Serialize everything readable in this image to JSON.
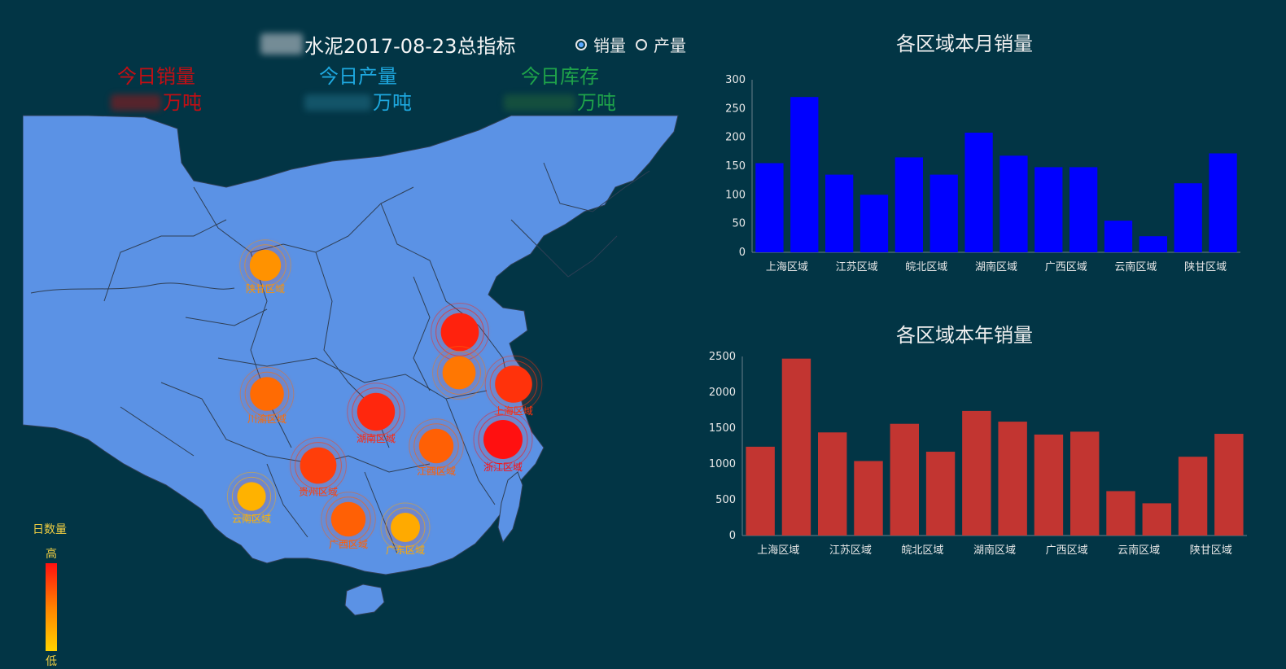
{
  "header": {
    "title": "水泥2017-08-23总指标",
    "mode_options": [
      {
        "label": "销量",
        "checked": true
      },
      {
        "label": "产量",
        "checked": false
      }
    ]
  },
  "stats": [
    {
      "label": "今日销量",
      "unit": "万吨",
      "color": "#c20f14"
    },
    {
      "label": "今日产量",
      "unit": "万吨",
      "color": "#1ea8df"
    },
    {
      "label": "今日库存",
      "unit": "万吨",
      "color": "#1fa34a"
    }
  ],
  "map": {
    "fill_color": "#5b92e5",
    "regions": [
      {
        "name": "陕甘区域",
        "level": 0.4
      },
      {
        "name": "",
        "level": 0.92
      },
      {
        "name": "",
        "level": 0.55
      },
      {
        "name": "上海区域",
        "level": 0.85
      },
      {
        "name": "川渝区域",
        "level": 0.6
      },
      {
        "name": "湖南区域",
        "level": 0.9
      },
      {
        "name": "江西区域",
        "level": 0.65
      },
      {
        "name": "浙江区域",
        "level": 1.0
      },
      {
        "name": "贵州区域",
        "level": 0.8
      },
      {
        "name": "云南区域",
        "level": 0.2
      },
      {
        "name": "广西区域",
        "level": 0.65
      },
      {
        "name": "广东区域",
        "level": 0.25
      }
    ]
  },
  "legend": {
    "title": "日数量",
    "high": "高",
    "low": "低"
  },
  "chart_data": [
    {
      "type": "bar",
      "title": "各区域本月销量",
      "color": "#0000ff",
      "categories": [
        "上海区域",
        "",
        "江苏区域",
        "",
        "皖北区域",
        "",
        "湖南区域",
        "",
        "广西区域",
        "",
        "云南区域",
        "",
        "陕甘区域",
        ""
      ],
      "values": [
        155,
        270,
        135,
        100,
        165,
        135,
        208,
        168,
        148,
        148,
        55,
        28,
        120,
        172
      ],
      "ylim": [
        0,
        300
      ],
      "yticks": [
        0,
        50,
        100,
        150,
        200,
        250,
        300
      ]
    },
    {
      "type": "bar",
      "title": "各区域本年销量",
      "color": "#c23531",
      "categories": [
        "上海区域",
        "",
        "江苏区域",
        "",
        "皖北区域",
        "",
        "湖南区域",
        "",
        "广西区域",
        "",
        "云南区域",
        "",
        "陕甘区域",
        ""
      ],
      "values": [
        1240,
        2470,
        1440,
        1040,
        1560,
        1170,
        1740,
        1590,
        1410,
        1450,
        620,
        450,
        1100,
        1420
      ],
      "ylim": [
        0,
        2500
      ],
      "yticks": [
        0,
        500,
        1000,
        1500,
        2000,
        2500
      ]
    }
  ]
}
